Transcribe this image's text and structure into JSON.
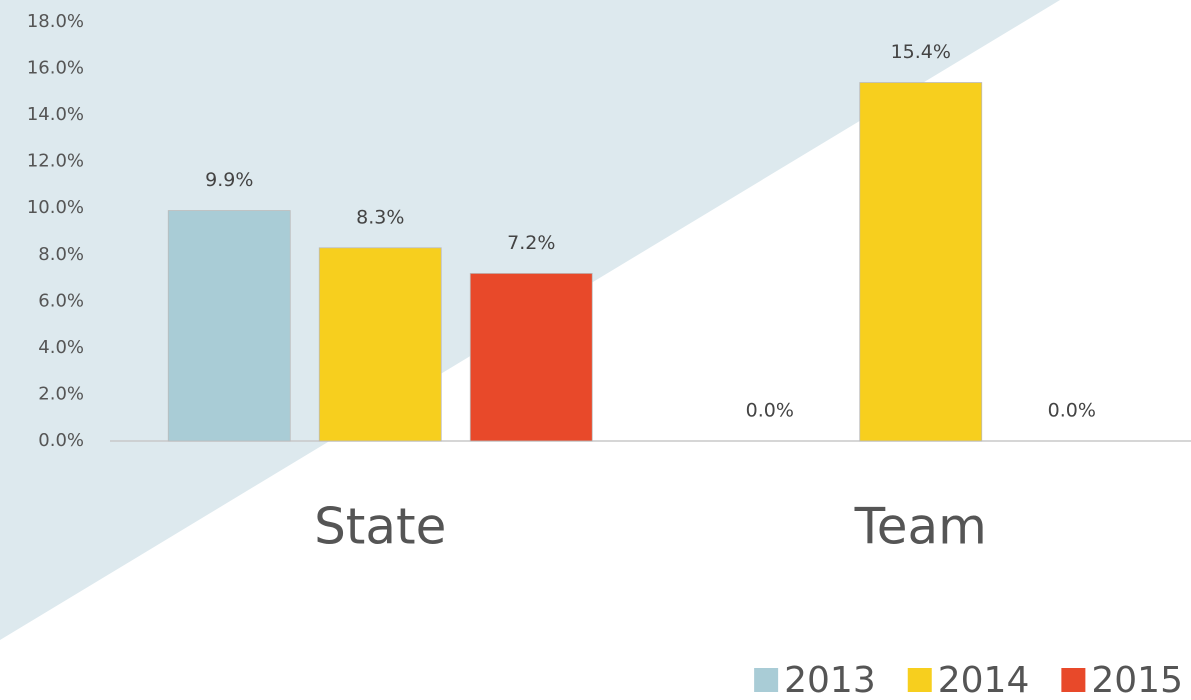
{
  "chart_data": {
    "type": "bar",
    "categories": [
      "State",
      "Team"
    ],
    "series": [
      {
        "name": "2013",
        "color": "#a9ccd6",
        "values": [
          9.9,
          0.0
        ],
        "value_labels": [
          "9.9%",
          "0.0%"
        ]
      },
      {
        "name": "2014",
        "color": "#f7cf1e",
        "values": [
          8.3,
          15.4
        ],
        "value_labels": [
          "8.3%",
          "15.4%"
        ]
      },
      {
        "name": "2015",
        "color": "#e8492a",
        "values": [
          7.2,
          0.0
        ],
        "value_labels": [
          "7.2%",
          "0.0%"
        ]
      }
    ],
    "ylim": [
      0,
      18
    ],
    "yticks": [
      {
        "value": 0,
        "label": "0.0%"
      },
      {
        "value": 2,
        "label": "2.0%"
      },
      {
        "value": 4,
        "label": "4.0%"
      },
      {
        "value": 6,
        "label": "6.0%"
      },
      {
        "value": 8,
        "label": "8.0%"
      },
      {
        "value": 10,
        "label": "10.0%"
      },
      {
        "value": 12,
        "label": "12.0%"
      },
      {
        "value": 14,
        "label": "14.0%"
      },
      {
        "value": 16,
        "label": "16.0%"
      },
      {
        "value": 18,
        "label": "18.0%"
      }
    ],
    "legend": "bottom-right"
  }
}
